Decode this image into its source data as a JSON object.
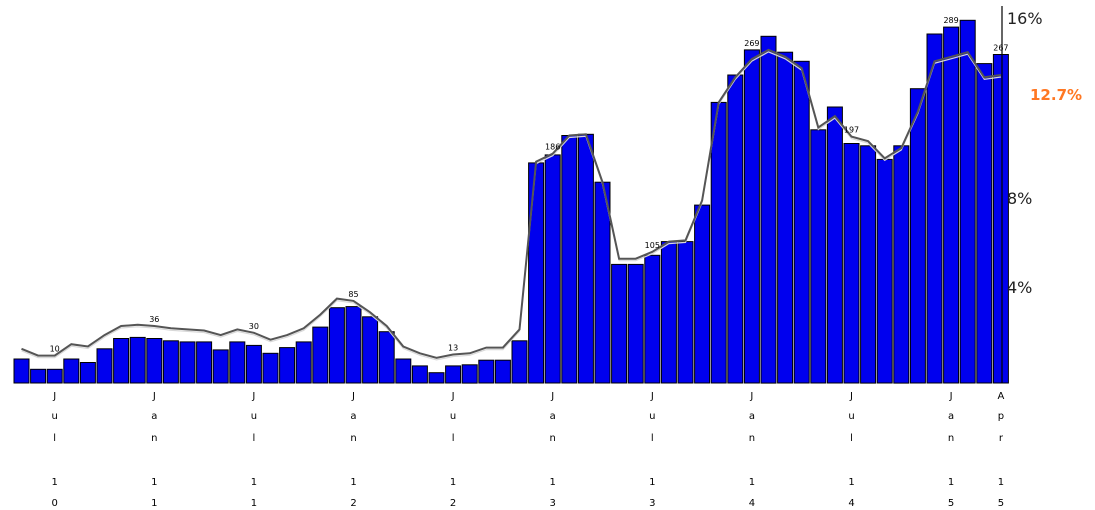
{
  "colors": {
    "bar": "#0000ee",
    "trend": "#555555",
    "current_label": "#ff7722"
  },
  "chart_data": {
    "type": "bar",
    "ylim": [
      0,
      16
    ],
    "y_ticks": [
      "16%",
      "8%",
      "4%"
    ],
    "current_value_label": "12.7%",
    "values": [
      1.05,
      0.6,
      0.6,
      1.05,
      0.9,
      1.5,
      1.95,
      2.0,
      1.95,
      1.85,
      1.8,
      1.8,
      1.45,
      1.8,
      1.65,
      1.3,
      1.55,
      1.8,
      2.45,
      3.3,
      3.35,
      2.9,
      2.25,
      1.05,
      0.75,
      0.45,
      0.75,
      0.8,
      1.0,
      1.0,
      1.85,
      9.65,
      10.0,
      10.85,
      10.9,
      8.8,
      5.2,
      5.2,
      5.6,
      6.2,
      6.2,
      7.8,
      12.3,
      13.5,
      14.6,
      15.2,
      14.5,
      14.1,
      11.1,
      12.1,
      10.5,
      10.4,
      9.8,
      10.4,
      12.9,
      15.3,
      15.6,
      15.9,
      14.0,
      14.4
    ],
    "trend": [
      1.5,
      1.2,
      1.2,
      1.7,
      1.6,
      2.1,
      2.5,
      2.55,
      2.5,
      2.4,
      2.35,
      2.3,
      2.1,
      2.35,
      2.2,
      1.9,
      2.1,
      2.4,
      3.0,
      3.7,
      3.6,
      3.1,
      2.5,
      1.6,
      1.3,
      1.1,
      1.25,
      1.3,
      1.55,
      1.55,
      2.35,
      9.7,
      10.05,
      10.85,
      10.9,
      8.8,
      5.45,
      5.45,
      5.75,
      6.2,
      6.25,
      8.0,
      12.3,
      13.4,
      14.2,
      14.6,
      14.3,
      13.8,
      11.2,
      11.7,
      10.8,
      10.6,
      9.85,
      10.3,
      11.9,
      14.1,
      14.3,
      14.5,
      13.4,
      13.5
    ],
    "data_labels": [
      {
        "index": 2,
        "text": "10"
      },
      {
        "index": 8,
        "text": "36"
      },
      {
        "index": 14,
        "text": "30"
      },
      {
        "index": 20,
        "text": "85"
      },
      {
        "index": 26,
        "text": "13"
      },
      {
        "index": 32,
        "text": "186"
      },
      {
        "index": 38,
        "text": "105"
      },
      {
        "index": 44,
        "text": "269"
      },
      {
        "index": 50,
        "text": "197"
      },
      {
        "index": 56,
        "text": "289"
      },
      {
        "index": 59,
        "text": "267"
      }
    ],
    "x_ticks": [
      {
        "index": 2,
        "chars": [
          "J",
          "u",
          "l",
          "",
          "1",
          "0"
        ]
      },
      {
        "index": 8,
        "chars": [
          "J",
          "a",
          "n",
          "",
          "1",
          "1"
        ]
      },
      {
        "index": 14,
        "chars": [
          "J",
          "u",
          "l",
          "",
          "1",
          "1"
        ]
      },
      {
        "index": 20,
        "chars": [
          "J",
          "a",
          "n",
          "",
          "1",
          "2"
        ]
      },
      {
        "index": 26,
        "chars": [
          "J",
          "u",
          "l",
          "",
          "1",
          "2"
        ]
      },
      {
        "index": 32,
        "chars": [
          "J",
          "a",
          "n",
          "",
          "1",
          "3"
        ]
      },
      {
        "index": 38,
        "chars": [
          "J",
          "u",
          "l",
          "",
          "1",
          "3"
        ]
      },
      {
        "index": 44,
        "chars": [
          "J",
          "a",
          "n",
          "",
          "1",
          "4"
        ]
      },
      {
        "index": 50,
        "chars": [
          "J",
          "u",
          "l",
          "",
          "1",
          "4"
        ]
      },
      {
        "index": 56,
        "chars": [
          "J",
          "a",
          "n",
          "",
          "1",
          "5"
        ]
      },
      {
        "index": 59,
        "chars": [
          "A",
          "p",
          "r",
          "",
          "1",
          "5"
        ]
      }
    ]
  }
}
